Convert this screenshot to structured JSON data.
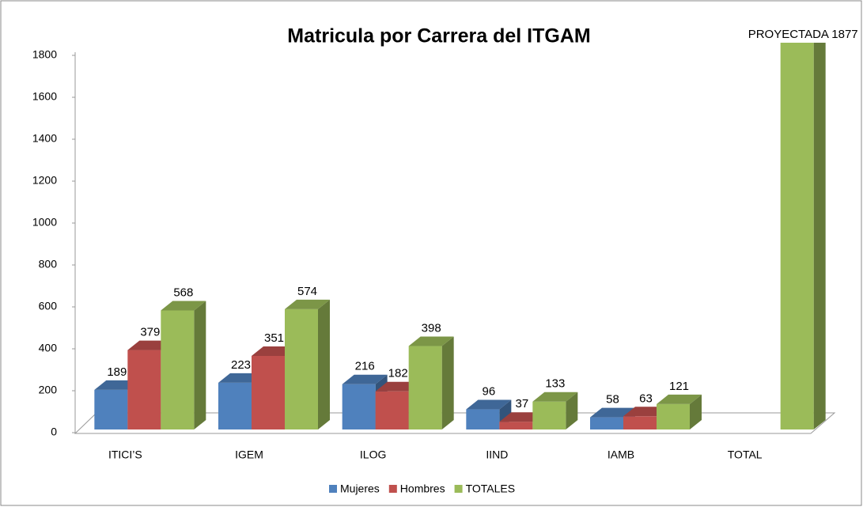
{
  "chart_data": {
    "type": "bar3d",
    "title": "Matricula por Carrera del ITGAM",
    "categories": [
      "ITICI’S",
      "IGEM",
      "ILOG",
      "IIND",
      "IAMB",
      "TOTAL"
    ],
    "series": [
      {
        "name": "Mujeres",
        "color": "#4f81bd",
        "values": [
          189,
          223,
          216,
          96,
          58,
          null
        ]
      },
      {
        "name": "Hombres",
        "color": "#c0504d",
        "values": [
          379,
          351,
          182,
          37,
          63,
          null
        ]
      },
      {
        "name": "TOTALES",
        "color": "#9bbb59",
        "values": [
          568,
          574,
          398,
          133,
          121,
          1877
        ],
        "value_labels": [
          "568",
          "574",
          "398",
          "133",
          "121",
          "PROYECTADA 1877"
        ]
      }
    ],
    "ylim": [
      0,
      1800
    ],
    "yticks": [
      0,
      200,
      400,
      600,
      800,
      1000,
      1200,
      1400,
      1600,
      1800
    ],
    "legend": "bottom"
  }
}
